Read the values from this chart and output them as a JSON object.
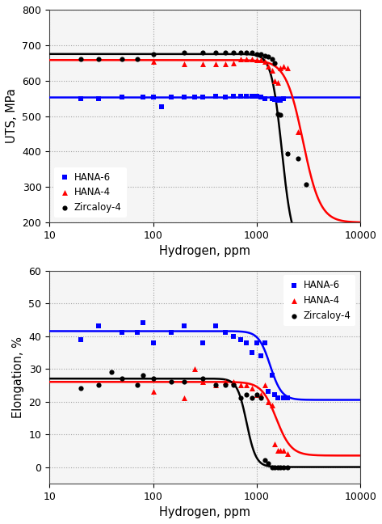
{
  "top": {
    "ylabel": "UTS, MPa",
    "xlabel": "Hydrogen, ppm",
    "ylim": [
      200,
      800
    ],
    "yticks": [
      200,
      300,
      400,
      500,
      600,
      700,
      800
    ],
    "xlim": [
      10,
      10000
    ],
    "colors": {
      "hana6": "#0000FF",
      "hana4": "#FF0000",
      "zr4": "#000000"
    },
    "hana6_pts": [
      [
        20,
        550
      ],
      [
        30,
        550
      ],
      [
        50,
        553
      ],
      [
        80,
        553
      ],
      [
        100,
        553
      ],
      [
        120,
        527
      ],
      [
        150,
        553
      ],
      [
        200,
        553
      ],
      [
        250,
        553
      ],
      [
        300,
        553
      ],
      [
        400,
        557
      ],
      [
        500,
        553
      ],
      [
        600,
        555
      ],
      [
        700,
        557
      ],
      [
        800,
        557
      ],
      [
        900,
        557
      ],
      [
        1000,
        557
      ],
      [
        1100,
        553
      ],
      [
        1200,
        550
      ],
      [
        1400,
        548
      ],
      [
        1500,
        547
      ],
      [
        1600,
        545
      ],
      [
        1700,
        545
      ],
      [
        1800,
        550
      ]
    ],
    "hana4_pts": [
      [
        100,
        655
      ],
      [
        200,
        648
      ],
      [
        300,
        648
      ],
      [
        400,
        648
      ],
      [
        500,
        648
      ],
      [
        600,
        650
      ],
      [
        700,
        660
      ],
      [
        800,
        660
      ],
      [
        900,
        660
      ],
      [
        1000,
        658
      ],
      [
        1100,
        658
      ],
      [
        1200,
        655
      ],
      [
        1300,
        640
      ],
      [
        1400,
        630
      ],
      [
        1500,
        600
      ],
      [
        1600,
        595
      ],
      [
        1700,
        635
      ],
      [
        1800,
        640
      ],
      [
        2000,
        635
      ],
      [
        2500,
        455
      ]
    ],
    "zr4_pts": [
      [
        20,
        660
      ],
      [
        30,
        660
      ],
      [
        50,
        660
      ],
      [
        70,
        660
      ],
      [
        100,
        675
      ],
      [
        200,
        678
      ],
      [
        300,
        680
      ],
      [
        400,
        678
      ],
      [
        500,
        680
      ],
      [
        600,
        680
      ],
      [
        700,
        680
      ],
      [
        800,
        680
      ],
      [
        900,
        678
      ],
      [
        1000,
        675
      ],
      [
        1100,
        675
      ],
      [
        1200,
        670
      ],
      [
        1300,
        668
      ],
      [
        1400,
        660
      ],
      [
        1500,
        650
      ],
      [
        1600,
        505
      ],
      [
        1700,
        503
      ],
      [
        2000,
        395
      ],
      [
        2500,
        380
      ],
      [
        3000,
        307
      ]
    ],
    "hana6_curve": {
      "high": 553,
      "low": 553,
      "x_mid": 5000,
      "k": 5
    },
    "hana4_curve": {
      "high": 658,
      "low": 200,
      "x_mid": 2800,
      "k": 12
    },
    "zr4_curve": {
      "high": 675,
      "low": 130,
      "x_mid": 1750,
      "k": 20
    }
  },
  "bot": {
    "ylabel": "Elongation, %",
    "xlabel": "Hydrogen, ppm",
    "ylim": [
      -5,
      60
    ],
    "yticks": [
      0,
      10,
      20,
      30,
      40,
      50,
      60
    ],
    "xlim": [
      10,
      10000
    ],
    "colors": {
      "hana6": "#0000FF",
      "hana4": "#FF0000",
      "zr4": "#000000"
    },
    "hana6_pts": [
      [
        20,
        39
      ],
      [
        30,
        43
      ],
      [
        50,
        41
      ],
      [
        70,
        41
      ],
      [
        80,
        44
      ],
      [
        100,
        38
      ],
      [
        150,
        41
      ],
      [
        200,
        43
      ],
      [
        300,
        38
      ],
      [
        400,
        43
      ],
      [
        500,
        41
      ],
      [
        600,
        40
      ],
      [
        700,
        39
      ],
      [
        800,
        38
      ],
      [
        900,
        35
      ],
      [
        1000,
        38
      ],
      [
        1100,
        34
      ],
      [
        1200,
        38
      ],
      [
        1300,
        23
      ],
      [
        1400,
        28
      ],
      [
        1500,
        22
      ],
      [
        1600,
        21
      ],
      [
        1800,
        21
      ],
      [
        2000,
        21
      ]
    ],
    "hana4_pts": [
      [
        100,
        23
      ],
      [
        200,
        21
      ],
      [
        250,
        30
      ],
      [
        300,
        26
      ],
      [
        400,
        25
      ],
      [
        500,
        26
      ],
      [
        600,
        26
      ],
      [
        700,
        25
      ],
      [
        800,
        25
      ],
      [
        900,
        24
      ],
      [
        1000,
        22
      ],
      [
        1100,
        22
      ],
      [
        1200,
        25
      ],
      [
        1300,
        20
      ],
      [
        1400,
        19
      ],
      [
        1500,
        7
      ],
      [
        1600,
        5
      ],
      [
        1700,
        5
      ],
      [
        1800,
        5
      ],
      [
        2000,
        4
      ]
    ],
    "zr4_pts": [
      [
        20,
        24
      ],
      [
        30,
        25
      ],
      [
        40,
        29
      ],
      [
        50,
        27
      ],
      [
        70,
        25
      ],
      [
        80,
        28
      ],
      [
        100,
        27
      ],
      [
        150,
        26
      ],
      [
        200,
        26
      ],
      [
        300,
        27
      ],
      [
        400,
        25
      ],
      [
        500,
        25
      ],
      [
        600,
        25
      ],
      [
        700,
        21
      ],
      [
        800,
        22
      ],
      [
        900,
        21
      ],
      [
        1000,
        22
      ],
      [
        1100,
        21
      ],
      [
        1200,
        2
      ],
      [
        1300,
        1
      ],
      [
        1400,
        0
      ],
      [
        1500,
        0
      ],
      [
        1600,
        0
      ],
      [
        1700,
        0
      ],
      [
        1800,
        0
      ],
      [
        2000,
        0
      ]
    ],
    "hana6_curve": {
      "high": 41.5,
      "low": 20.5,
      "x_mid": 1350,
      "k": 18
    },
    "hana4_curve": {
      "high": 26.0,
      "low": 3.5,
      "x_mid": 1550,
      "k": 14
    },
    "zr4_curve": {
      "high": 27.0,
      "low": 0.0,
      "x_mid": 800,
      "k": 22
    }
  },
  "bg_color": "#f5f5f5",
  "grid_color": "#aaaaaa",
  "marker_size_sq": 20,
  "marker_size_tr": 25,
  "marker_size_ci": 20,
  "line_width": 1.8
}
